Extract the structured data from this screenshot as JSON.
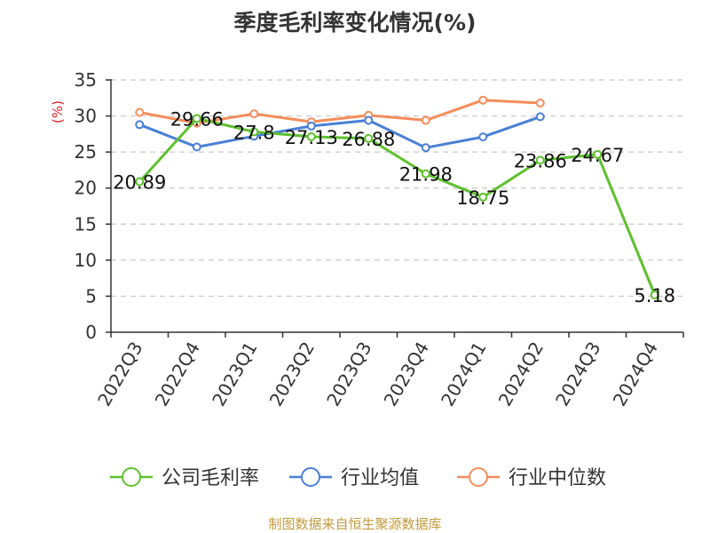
{
  "chart_data": {
    "type": "line",
    "title": "季度毛利率变化情况(%)",
    "ylabel": "(%)",
    "ylim": [
      0,
      35
    ],
    "yticks": [
      0,
      5,
      10,
      15,
      20,
      25,
      30,
      35
    ],
    "grid": true,
    "legend_position": "bottom",
    "categories": [
      "2022Q3",
      "2022Q4",
      "2023Q1",
      "2023Q2",
      "2023Q3",
      "2023Q4",
      "2024Q1",
      "2024Q2",
      "2024Q3",
      "2024Q4"
    ],
    "series": [
      {
        "name": "公司毛利率",
        "color": "#5ec02d",
        "values": [
          20.89,
          29.66,
          27.8,
          27.13,
          26.88,
          21.98,
          18.75,
          23.86,
          24.67,
          5.18
        ],
        "labels": [
          "20.89",
          "29.66",
          "27.8",
          "27.13",
          "26.88",
          "21.98",
          "18.75",
          "23.86",
          "24.67",
          "5.18"
        ]
      },
      {
        "name": "行业均值",
        "color": "#4a7fd6",
        "values": [
          28.8,
          25.7,
          27.2,
          28.6,
          29.4,
          25.6,
          27.1,
          29.9,
          null,
          null
        ]
      },
      {
        "name": "行业中位数",
        "color": "#f58d5b",
        "values": [
          30.5,
          29.0,
          30.3,
          29.2,
          30.1,
          29.4,
          32.2,
          31.8,
          null,
          null
        ]
      }
    ]
  },
  "source": {
    "text": "制图数据来自恒生聚源数据库",
    "color": "#c39a3b"
  },
  "ylabel_color": "#d42020"
}
